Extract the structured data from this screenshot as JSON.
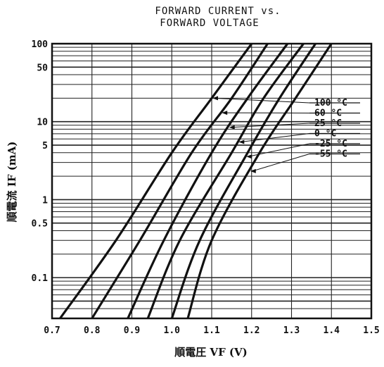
{
  "chart_data": {
    "type": "line",
    "title": "FORWARD CURRENT vs.",
    "subtitle": "FORWARD VOLTAGE",
    "xlabel": "順電圧  VF (V)",
    "ylabel": "順電流  IF (mA)",
    "x_ticks": [
      "0.7",
      "0.8",
      "0.9",
      "1.0",
      "1.1",
      "1.2",
      "1.3",
      "1.4",
      "1.5"
    ],
    "y_ticks": [
      "0.1",
      "0.5",
      "1",
      "5",
      "10",
      "50",
      "100"
    ],
    "xlim": [
      0.7,
      1.5
    ],
    "ylim": [
      0.03,
      100
    ],
    "yscale": "log",
    "grid": true,
    "series": [
      {
        "name": "100 °C",
        "x": [
          0.72,
          0.86,
          1.0,
          1.1,
          1.2
        ],
        "y": [
          0.03,
          0.3,
          4,
          20,
          100
        ]
      },
      {
        "name": "60 °C",
        "x": [
          0.8,
          0.92,
          1.05,
          1.15,
          1.24
        ],
        "y": [
          0.03,
          0.3,
          4,
          20,
          100
        ]
      },
      {
        "name": "25 °C",
        "x": [
          0.89,
          0.98,
          1.1,
          1.19,
          1.29
        ],
        "y": [
          0.03,
          0.3,
          4,
          20,
          100
        ]
      },
      {
        "name": "0 °C",
        "x": [
          0.94,
          1.02,
          1.15,
          1.23,
          1.33
        ],
        "y": [
          0.03,
          0.3,
          4,
          20,
          100
        ]
      },
      {
        "name": "-25 °C",
        "x": [
          1.0,
          1.07,
          1.19,
          1.27,
          1.36
        ],
        "y": [
          0.03,
          0.3,
          4,
          20,
          100
        ]
      },
      {
        "name": "-55 °C",
        "x": [
          1.04,
          1.1,
          1.22,
          1.31,
          1.4
        ],
        "y": [
          0.03,
          0.3,
          4,
          20,
          100
        ]
      }
    ]
  }
}
